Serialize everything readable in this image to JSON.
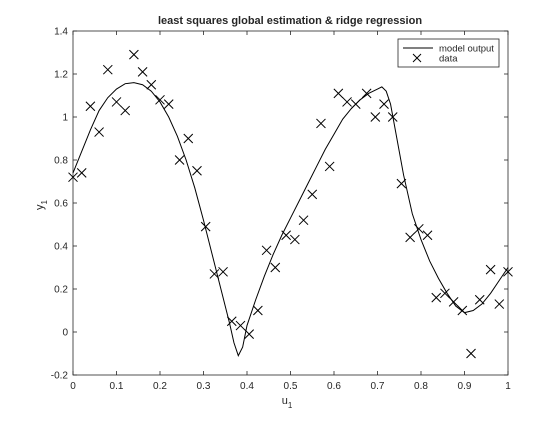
{
  "chart_data": {
    "type": "line",
    "title": "least squares global estimation & ridge regression",
    "xlabel": "u",
    "xlabel_sub": "1",
    "ylabel": "y",
    "ylabel_sub": "1",
    "xlim": [
      0,
      1
    ],
    "ylim": [
      -0.2,
      1.4
    ],
    "xticks": [
      0,
      0.1,
      0.2,
      0.3,
      0.4,
      0.5,
      0.6,
      0.7,
      0.8,
      0.9,
      1
    ],
    "xtick_labels": [
      "0",
      "0.1",
      "0.2",
      "0.3",
      "0.4",
      "0.5",
      "0.6",
      "0.7",
      "0.8",
      "0.9",
      "1"
    ],
    "yticks": [
      -0.2,
      0,
      0.2,
      0.4,
      0.6,
      0.8,
      1,
      1.2,
      1.4
    ],
    "ytick_labels": [
      "-0.2",
      "0",
      "0.2",
      "0.4",
      "0.6",
      "0.8",
      "1",
      "1.2",
      "1.4"
    ],
    "grid": false,
    "legend_position": "top-right",
    "colors": {
      "line": "#000000",
      "markers": "#000000",
      "axes": "#262626"
    },
    "series": [
      {
        "name": "model output",
        "type": "line",
        "x": [
          0,
          0.02,
          0.04,
          0.06,
          0.08,
          0.1,
          0.12,
          0.14,
          0.16,
          0.18,
          0.2,
          0.22,
          0.24,
          0.26,
          0.28,
          0.3,
          0.32,
          0.34,
          0.36,
          0.37,
          0.38,
          0.39,
          0.4,
          0.42,
          0.44,
          0.46,
          0.48,
          0.5,
          0.52,
          0.54,
          0.56,
          0.58,
          0.6,
          0.62,
          0.64,
          0.66,
          0.68,
          0.7,
          0.71,
          0.72,
          0.73,
          0.74,
          0.76,
          0.78,
          0.8,
          0.82,
          0.84,
          0.86,
          0.88,
          0.9,
          0.92,
          0.94,
          0.96,
          0.98,
          1.0
        ],
        "y": [
          0.74,
          0.84,
          0.94,
          1.03,
          1.09,
          1.13,
          1.155,
          1.16,
          1.15,
          1.12,
          1.07,
          1.0,
          0.91,
          0.8,
          0.67,
          0.52,
          0.36,
          0.2,
          0.04,
          -0.05,
          -0.11,
          -0.07,
          0.03,
          0.15,
          0.26,
          0.36,
          0.45,
          0.53,
          0.61,
          0.69,
          0.77,
          0.85,
          0.92,
          0.99,
          1.04,
          1.08,
          1.11,
          1.13,
          1.14,
          1.12,
          1.06,
          0.95,
          0.73,
          0.55,
          0.43,
          0.33,
          0.25,
          0.18,
          0.12,
          0.09,
          0.1,
          0.13,
          0.18,
          0.24,
          0.3
        ]
      },
      {
        "name": "data",
        "type": "scatter",
        "marker": "x",
        "x": [
          0.0,
          0.02,
          0.04,
          0.06,
          0.08,
          0.1,
          0.12,
          0.14,
          0.16,
          0.18,
          0.2,
          0.22,
          0.245,
          0.265,
          0.285,
          0.305,
          0.325,
          0.345,
          0.365,
          0.385,
          0.405,
          0.425,
          0.445,
          0.465,
          0.49,
          0.51,
          0.53,
          0.55,
          0.57,
          0.59,
          0.61,
          0.63,
          0.65,
          0.675,
          0.695,
          0.715,
          0.735,
          0.755,
          0.775,
          0.795,
          0.815,
          0.835,
          0.855,
          0.875,
          0.895,
          0.915,
          0.935,
          0.96,
          0.98,
          1.0
        ],
        "y": [
          0.72,
          0.74,
          1.05,
          0.93,
          1.22,
          1.07,
          1.03,
          1.29,
          1.21,
          1.15,
          1.08,
          1.06,
          0.8,
          0.9,
          0.75,
          0.49,
          0.27,
          0.28,
          0.05,
          0.03,
          -0.01,
          0.1,
          0.38,
          0.3,
          0.45,
          0.43,
          0.52,
          0.64,
          0.97,
          0.77,
          1.11,
          1.07,
          1.06,
          1.11,
          1.0,
          1.06,
          1.0,
          0.69,
          0.44,
          0.48,
          0.45,
          0.16,
          0.18,
          0.14,
          0.1,
          -0.1,
          0.15,
          0.29,
          0.13,
          0.28
        ]
      }
    ]
  }
}
